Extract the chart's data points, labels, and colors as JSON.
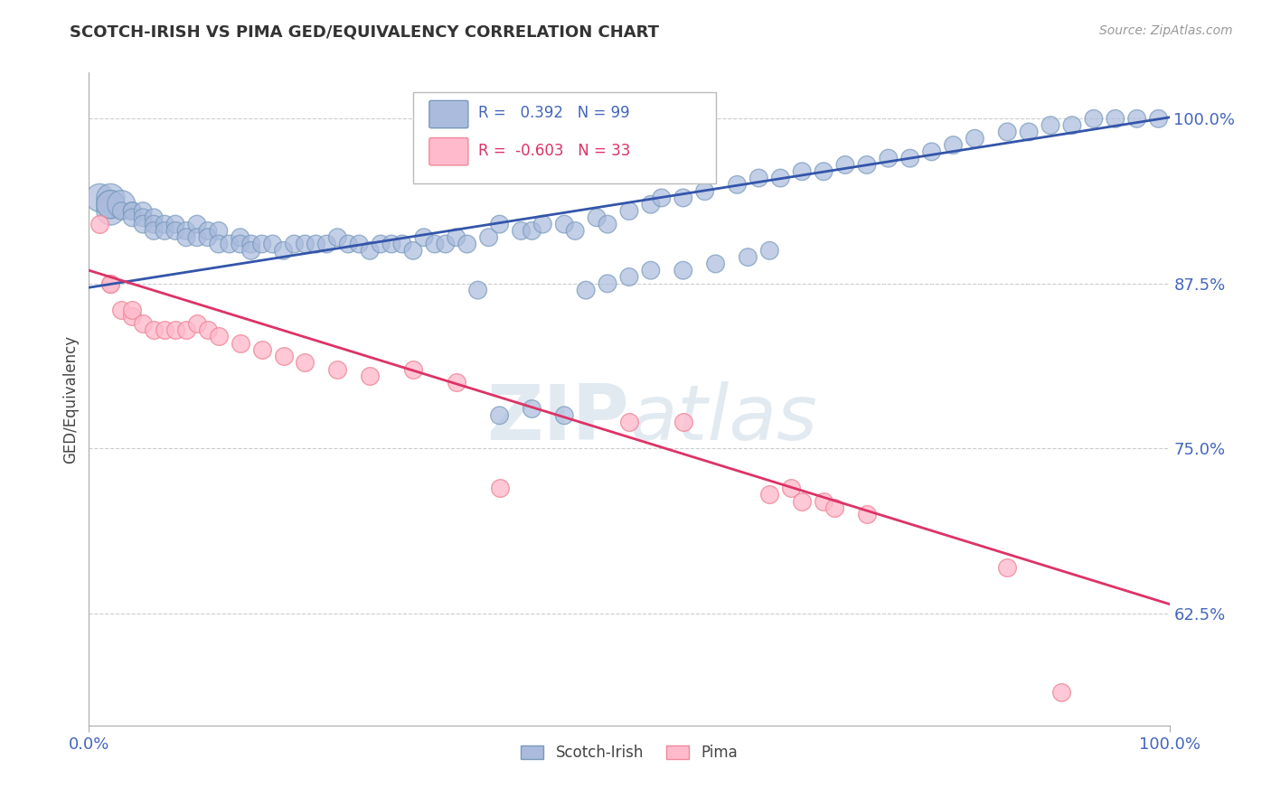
{
  "title": "SCOTCH-IRISH VS PIMA GED/EQUIVALENCY CORRELATION CHART",
  "source": "Source: ZipAtlas.com",
  "ylabel": "GED/Equivalency",
  "xlim": [
    0.0,
    1.0
  ],
  "ylim": [
    0.54,
    1.035
  ],
  "yticks": [
    0.625,
    0.75,
    0.875,
    1.0
  ],
  "ytick_labels": [
    "62.5%",
    "75.0%",
    "87.5%",
    "100.0%"
  ],
  "xtick_labels": [
    "0.0%",
    "100.0%"
  ],
  "grid_color": "#cccccc",
  "background_color": "#ffffff",
  "blue_color": "#aabbdd",
  "blue_edge_color": "#7799bb",
  "pink_color": "#ffbbcc",
  "pink_edge_color": "#ee8899",
  "blue_line_color": "#3355aa",
  "pink_line_color": "#dd3366",
  "legend_r_blue": "0.392",
  "legend_n_blue": "99",
  "legend_r_pink": "-0.603",
  "legend_n_pink": "33",
  "watermark": "ZIPatlas",
  "tick_color": "#4466bb",
  "blue_line_start_y": 0.872,
  "blue_line_end_y": 1.001,
  "pink_line_start_y": 0.885,
  "pink_line_end_y": 0.632,
  "scotch_irish_x": [
    0.01,
    0.02,
    0.02,
    0.02,
    0.02,
    0.03,
    0.03,
    0.04,
    0.04,
    0.04,
    0.05,
    0.05,
    0.05,
    0.06,
    0.06,
    0.06,
    0.07,
    0.07,
    0.08,
    0.08,
    0.09,
    0.09,
    0.1,
    0.1,
    0.11,
    0.11,
    0.12,
    0.12,
    0.13,
    0.14,
    0.14,
    0.15,
    0.15,
    0.16,
    0.17,
    0.18,
    0.19,
    0.2,
    0.21,
    0.22,
    0.23,
    0.24,
    0.25,
    0.26,
    0.27,
    0.28,
    0.29,
    0.3,
    0.31,
    0.32,
    0.33,
    0.34,
    0.35,
    0.37,
    0.38,
    0.4,
    0.41,
    0.42,
    0.44,
    0.45,
    0.47,
    0.48,
    0.5,
    0.52,
    0.53,
    0.55,
    0.57,
    0.6,
    0.62,
    0.64,
    0.66,
    0.68,
    0.7,
    0.72,
    0.74,
    0.76,
    0.78,
    0.8,
    0.82,
    0.85,
    0.87,
    0.89,
    0.91,
    0.93,
    0.95,
    0.97,
    0.99,
    0.36,
    0.46,
    0.48,
    0.5,
    0.52,
    0.55,
    0.58,
    0.61,
    0.63,
    0.38,
    0.41,
    0.44
  ],
  "scotch_irish_y": [
    0.94,
    0.94,
    0.93,
    0.935,
    0.935,
    0.935,
    0.93,
    0.93,
    0.93,
    0.925,
    0.93,
    0.925,
    0.92,
    0.925,
    0.92,
    0.915,
    0.92,
    0.915,
    0.92,
    0.915,
    0.915,
    0.91,
    0.92,
    0.91,
    0.915,
    0.91,
    0.915,
    0.905,
    0.905,
    0.91,
    0.905,
    0.905,
    0.9,
    0.905,
    0.905,
    0.9,
    0.905,
    0.905,
    0.905,
    0.905,
    0.91,
    0.905,
    0.905,
    0.9,
    0.905,
    0.905,
    0.905,
    0.9,
    0.91,
    0.905,
    0.905,
    0.91,
    0.905,
    0.91,
    0.92,
    0.915,
    0.915,
    0.92,
    0.92,
    0.915,
    0.925,
    0.92,
    0.93,
    0.935,
    0.94,
    0.94,
    0.945,
    0.95,
    0.955,
    0.955,
    0.96,
    0.96,
    0.965,
    0.965,
    0.97,
    0.97,
    0.975,
    0.98,
    0.985,
    0.99,
    0.99,
    0.995,
    0.995,
    1.0,
    1.0,
    1.0,
    1.0,
    0.87,
    0.87,
    0.875,
    0.88,
    0.885,
    0.885,
    0.89,
    0.895,
    0.9,
    0.775,
    0.78,
    0.775
  ],
  "pima_x": [
    0.01,
    0.02,
    0.02,
    0.03,
    0.04,
    0.04,
    0.05,
    0.06,
    0.07,
    0.08,
    0.09,
    0.1,
    0.11,
    0.12,
    0.14,
    0.16,
    0.18,
    0.2,
    0.23,
    0.26,
    0.3,
    0.34,
    0.38,
    0.5,
    0.55,
    0.63,
    0.65,
    0.66,
    0.68,
    0.69,
    0.72,
    0.85,
    0.9
  ],
  "pima_y": [
    0.92,
    0.875,
    0.875,
    0.855,
    0.85,
    0.855,
    0.845,
    0.84,
    0.84,
    0.84,
    0.84,
    0.845,
    0.84,
    0.835,
    0.83,
    0.825,
    0.82,
    0.815,
    0.81,
    0.805,
    0.81,
    0.8,
    0.72,
    0.77,
    0.77,
    0.715,
    0.72,
    0.71,
    0.71,
    0.705,
    0.7,
    0.66,
    0.565
  ]
}
